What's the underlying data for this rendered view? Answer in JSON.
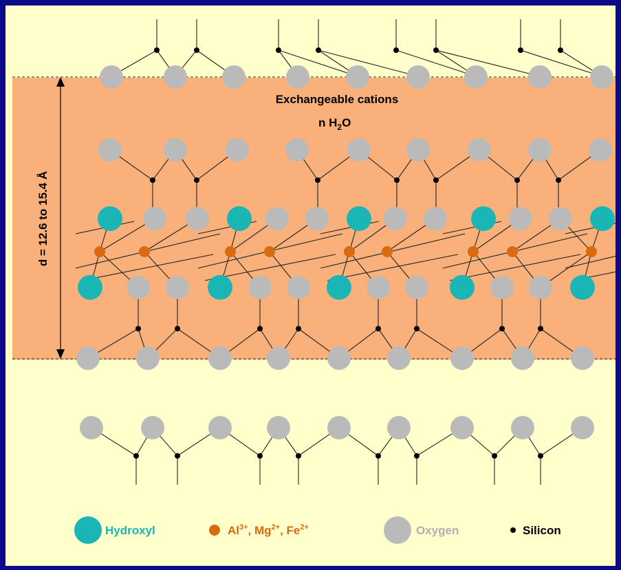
{
  "layer_band": {
    "title": "Exchangeable cations",
    "water": {
      "prefix": "n H",
      "subscript": "2",
      "suffix": "O"
    },
    "spacing_label": "d = 12.6 to 15.4 Å"
  },
  "legend": [
    {
      "key": "hydroxyl",
      "parts": [
        {
          "t": "Hydroxyl"
        }
      ],
      "color": "#1ab5b5"
    },
    {
      "key": "octahedral-cations",
      "parts": [
        {
          "t": "Al"
        },
        {
          "t": "3+",
          "sup": true
        },
        {
          "t": ", Mg"
        },
        {
          "t": "2+",
          "sup": true
        },
        {
          "t": ", Fe"
        },
        {
          "t": "2+",
          "sup": true
        }
      ],
      "color": "#d96a10"
    },
    {
      "key": "oxygen",
      "parts": [
        {
          "t": "Oxygen"
        }
      ],
      "color": "#b9b9b9"
    },
    {
      "key": "silicon",
      "parts": [
        {
          "t": "Silicon"
        }
      ],
      "color": "#000000"
    }
  ],
  "colors": {
    "background": "#ffffcc",
    "frame": "#0a0a8a",
    "interlayer_band": "#f9b07a",
    "hydroxyl": "#1ab5b5",
    "cation": "#d96a10",
    "oxygen": "#bababa",
    "silicon": "#000000",
    "bond": "#222222",
    "oxygen_label": "#b0b0b0"
  }
}
